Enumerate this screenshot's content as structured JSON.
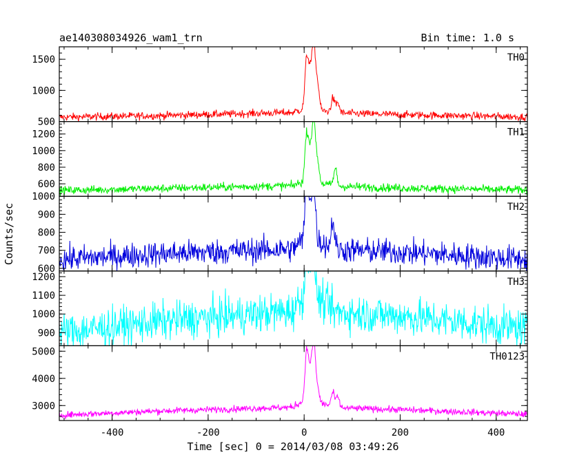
{
  "chart_data": {
    "type": "line",
    "title": "ae140308034926_wam1_trn",
    "subtitle": "Bin time: 1.0 s",
    "xlabel": "Time [sec] 0 = 2014/03/08 03:49:26",
    "ylabel": "Counts/sec",
    "xlim": [
      -510,
      465
    ],
    "xticks": [
      "-400",
      "-200",
      "0",
      "200",
      "400"
    ],
    "xtick_values": [
      -400,
      -200,
      0,
      200,
      400
    ],
    "panels": [
      {
        "name": "TH0",
        "color": "#ff0000",
        "ylim": [
          500,
          1700
        ],
        "yticks": [
          "500",
          "1000",
          "1500"
        ],
        "ytick_values": [
          500,
          1000,
          1500
        ],
        "baseline": [
          [
            -510,
            570
          ],
          [
            -300,
            595
          ],
          [
            0,
            650
          ],
          [
            200,
            610
          ],
          [
            465,
            575
          ]
        ],
        "noise": 30,
        "peaks": [
          [
            5,
            1420
          ],
          [
            12,
            1200
          ],
          [
            20,
            1700
          ],
          [
            28,
            1050
          ],
          [
            60,
            870
          ],
          [
            70,
            800
          ]
        ]
      },
      {
        "name": "TH1",
        "color": "#00ee00",
        "ylim": [
          450,
          1350
        ],
        "yticks": [
          "600",
          "800",
          "1000",
          "1200"
        ],
        "ytick_values": [
          600,
          800,
          1000,
          1200
        ],
        "baseline": [
          [
            -510,
            520
          ],
          [
            -300,
            545
          ],
          [
            0,
            580
          ],
          [
            200,
            550
          ],
          [
            465,
            525
          ]
        ],
        "noise": 25,
        "peaks": [
          [
            5,
            1130
          ],
          [
            12,
            920
          ],
          [
            20,
            1340
          ],
          [
            28,
            820
          ],
          [
            65,
            780
          ]
        ]
      },
      {
        "name": "TH2",
        "color": "#0000dd",
        "ylim": [
          585,
          1000
        ],
        "yticks": [
          "600",
          "700",
          "800",
          "900",
          "1000"
        ],
        "ytick_values": [
          600,
          700,
          800,
          900,
          1000
        ],
        "baseline": [
          [
            -510,
            650
          ],
          [
            -300,
            680
          ],
          [
            0,
            710
          ],
          [
            200,
            690
          ],
          [
            465,
            650
          ]
        ],
        "noise": 35,
        "peaks": [
          [
            5,
            990
          ],
          [
            12,
            880
          ],
          [
            20,
            1000
          ],
          [
            60,
            860
          ]
        ]
      },
      {
        "name": "TH3",
        "color": "#00ffff",
        "ylim": [
          830,
          1230
        ],
        "yticks": [
          "900",
          "1000",
          "1100",
          "1200"
        ],
        "ytick_values": [
          900,
          1000,
          1100,
          1200
        ],
        "baseline": [
          [
            -510,
            900
          ],
          [
            -300,
            960
          ],
          [
            0,
            1020
          ],
          [
            200,
            990
          ],
          [
            465,
            920
          ]
        ],
        "noise": 50,
        "peaks": [
          [
            5,
            1230
          ],
          [
            12,
            1150
          ],
          [
            20,
            1220
          ]
        ]
      },
      {
        "name": "TH0123",
        "color": "#ff00ff",
        "ylim": [
          2450,
          5200
        ],
        "yticks": [
          "3000",
          "4000",
          "5000"
        ],
        "ytick_values": [
          3000,
          4000,
          5000
        ],
        "baseline": [
          [
            -510,
            2650
          ],
          [
            -300,
            2800
          ],
          [
            0,
            2950
          ],
          [
            200,
            2850
          ],
          [
            465,
            2680
          ]
        ],
        "noise": 60,
        "peaks": [
          [
            5,
            4700
          ],
          [
            12,
            3900
          ],
          [
            20,
            5150
          ],
          [
            28,
            3400
          ],
          [
            60,
            3450
          ],
          [
            70,
            3300
          ]
        ]
      }
    ]
  }
}
